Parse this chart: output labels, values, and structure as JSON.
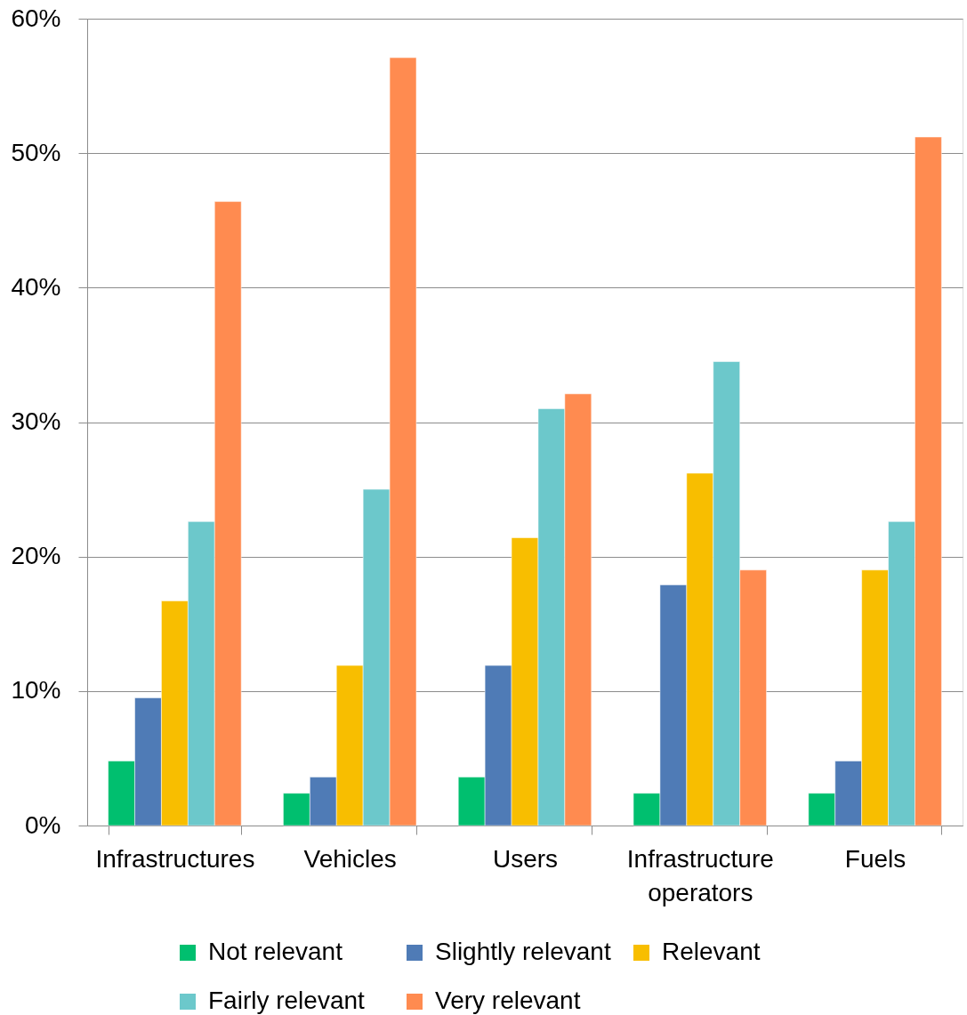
{
  "chart_data": {
    "type": "bar",
    "categories": [
      "Infrastructures",
      "Vehicles",
      "Users",
      "Infrastructure operators",
      "Fuels"
    ],
    "series": [
      {
        "name": "Not relevant",
        "color": "#00bf6f",
        "values": [
          4.8,
          2.4,
          3.6,
          2.4,
          2.4
        ]
      },
      {
        "name": "Slightly relevant",
        "color": "#4f7bb6",
        "values": [
          9.5,
          3.6,
          11.9,
          17.9,
          4.8
        ]
      },
      {
        "name": "Relevant",
        "color": "#f8be00",
        "values": [
          16.7,
          11.9,
          21.4,
          26.2,
          19.0
        ]
      },
      {
        "name": "Fairly relevant",
        "color": "#6cc8cb",
        "values": [
          22.6,
          25.0,
          31.0,
          34.5,
          22.6
        ]
      },
      {
        "name": "Very relevant",
        "color": "#ff8b50",
        "values": [
          46.4,
          57.1,
          32.1,
          19.0,
          51.2
        ]
      }
    ],
    "ylim": [
      0,
      60
    ],
    "yticks": [
      {
        "value": 0,
        "label": "0%"
      },
      {
        "value": 10,
        "label": "10%"
      },
      {
        "value": 20,
        "label": "20%"
      },
      {
        "value": 30,
        "label": "30%"
      },
      {
        "value": 40,
        "label": "40%"
      },
      {
        "value": 50,
        "label": "50%"
      },
      {
        "value": 60,
        "label": "60%"
      }
    ],
    "grid": "y",
    "legend": "bottom"
  }
}
